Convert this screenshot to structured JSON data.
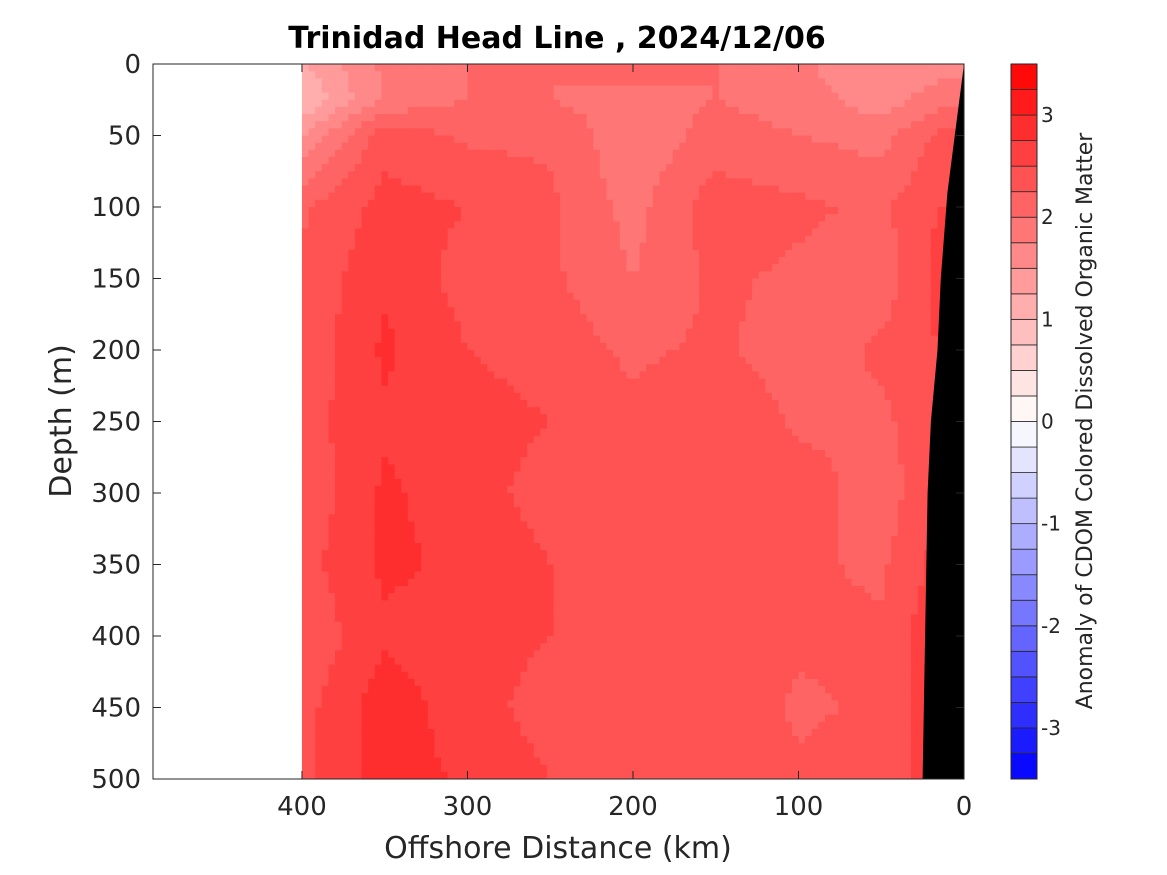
{
  "chart_data": {
    "type": "heatmap",
    "title": "Trinidad Head Line , 2024/12/06",
    "xlabel": "Offshore Distance (km)",
    "ylabel": "Depth (m)",
    "colorbar_label": "Anomaly of CDOM Colored Dissolved Organic Matter",
    "x_reversed": true,
    "y_reversed": true,
    "xlim": [
      0,
      490
    ],
    "ylim": [
      0,
      500
    ],
    "x_ticks": [
      400,
      300,
      200,
      100,
      0
    ],
    "y_ticks": [
      0,
      50,
      100,
      150,
      200,
      250,
      300,
      350,
      400,
      450,
      500
    ],
    "colorbar_range": [
      -3.5,
      3.5
    ],
    "colorbar_step": 0.25,
    "colorbar_ticks": [
      3,
      2,
      1,
      0,
      -1,
      -2,
      -3
    ],
    "data_extent_km": [
      0,
      400
    ],
    "grid": false,
    "colormap": {
      "negative": "#0000ff",
      "zero": "#ffffff",
      "positive": "#ff0000"
    },
    "bathymetry": {
      "fill": "#000000",
      "boundary": [
        [
          0,
          0
        ],
        [
          10,
          90
        ],
        [
          14,
          150
        ],
        [
          16,
          200
        ],
        [
          20,
          250
        ],
        [
          22,
          300
        ],
        [
          23.5,
          400
        ],
        [
          25,
          500
        ]
      ]
    },
    "anomaly_levels": {
      "depth_m": [
        0,
        25,
        50,
        100,
        150,
        200,
        250,
        300,
        350,
        400,
        450,
        500
      ],
      "distance_km": [
        400,
        350,
        300,
        250,
        200,
        150,
        100,
        50,
        15
      ],
      "values": [
        [
          1.2,
          1.8,
          2.0,
          2.0,
          2.1,
          2.0,
          1.8,
          1.5,
          1.6
        ],
        [
          1.0,
          1.8,
          2.0,
          2.0,
          1.9,
          2.0,
          1.9,
          1.6,
          1.9
        ],
        [
          1.5,
          2.4,
          2.2,
          2.2,
          1.8,
          2.1,
          2.0,
          1.9,
          2.3
        ],
        [
          2.2,
          2.6,
          2.5,
          2.3,
          1.9,
          2.4,
          2.3,
          2.2,
          2.5
        ],
        [
          2.3,
          2.7,
          2.4,
          2.3,
          2.0,
          2.3,
          2.2,
          2.1,
          2.6
        ],
        [
          2.3,
          2.8,
          2.5,
          2.4,
          2.2,
          2.3,
          2.1,
          2.3,
          2.5
        ],
        [
          2.4,
          2.7,
          2.6,
          2.5,
          2.3,
          2.5,
          2.2,
          2.2,
          2.4
        ],
        [
          2.3,
          2.8,
          2.6,
          2.4,
          2.4,
          2.3,
          2.4,
          2.1,
          2.5
        ],
        [
          2.4,
          2.8,
          2.7,
          2.5,
          2.4,
          2.5,
          2.3,
          2.2,
          2.6
        ],
        [
          2.3,
          2.7,
          2.6,
          2.5,
          2.4,
          2.4,
          2.3,
          2.3,
          2.7
        ],
        [
          2.4,
          2.9,
          2.6,
          2.4,
          2.3,
          2.5,
          2.2,
          2.3,
          2.7
        ],
        [
          2.4,
          2.9,
          2.7,
          2.5,
          2.4,
          2.4,
          2.3,
          2.4,
          2.6
        ]
      ]
    }
  }
}
